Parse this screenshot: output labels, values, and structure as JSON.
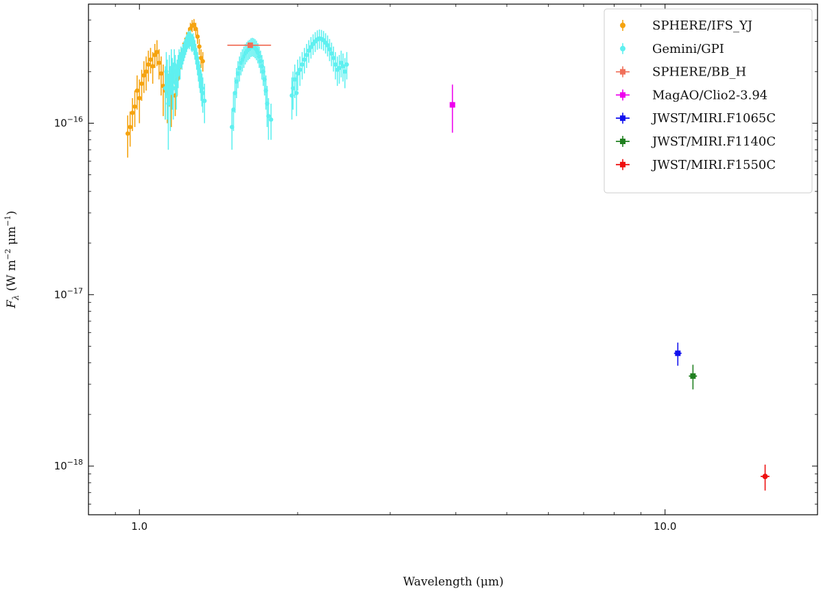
{
  "chart_data": {
    "type": "scatter",
    "xlabel": "Wavelength (μm)",
    "ylabel_main": "F",
    "ylabel_sub": "λ",
    "ylabel_units": " (W m",
    "ylabel_exp1": "−2",
    "ylabel_mid": " μm",
    "ylabel_exp2": "−1",
    "ylabel_close": ")",
    "x_scale": "log",
    "y_scale": "log",
    "xlim": [
      0.8,
      19.5
    ],
    "ylim": [
      5.2e-19,
      4.95e-16
    ],
    "x_ticks": [
      {
        "value": 1.0,
        "label": "1.0"
      },
      {
        "value": 10.0,
        "label": "10.0"
      }
    ],
    "y_ticks": [
      {
        "value": 1e-16,
        "base": "10",
        "exp": "−16"
      },
      {
        "value": 1e-17,
        "base": "10",
        "exp": "−17"
      },
      {
        "value": 1e-18,
        "base": "10",
        "exp": "−18"
      }
    ],
    "legend_position": "top-right",
    "grid": false,
    "series": [
      {
        "name": "SPHERE/IFS_YJ",
        "color": "#f5a30f",
        "marker": "circle",
        "points": [
          [
            0.95,
            8.7e-17,
            2.4e-17
          ],
          [
            0.96,
            9.5e-17,
            2.2e-17
          ],
          [
            0.97,
            1.15e-16,
            2.5e-17
          ],
          [
            0.98,
            1.25e-16,
            3e-17
          ],
          [
            0.99,
            1.55e-16,
            3.5e-17
          ],
          [
            1.0,
            1.4e-16,
            4e-17
          ],
          [
            1.01,
            1.7e-16,
            3.5e-17
          ],
          [
            1.02,
            1.9e-16,
            4e-17
          ],
          [
            1.03,
            2e-16,
            4.5e-17
          ],
          [
            1.04,
            2.2e-16,
            4.5e-17
          ],
          [
            1.05,
            2.35e-16,
            4e-17
          ],
          [
            1.06,
            2.15e-16,
            4.5e-17
          ],
          [
            1.07,
            2.5e-16,
            4e-17
          ],
          [
            1.08,
            2.6e-16,
            4.5e-17
          ],
          [
            1.09,
            2.25e-16,
            4.5e-17
          ],
          [
            1.1,
            1.95e-16,
            5e-17
          ],
          [
            1.11,
            1.65e-16,
            5.5e-17
          ],
          [
            1.12,
            1.55e-16,
            5e-17
          ],
          [
            1.13,
            1.5e-16,
            5e-17
          ],
          [
            1.14,
            1.7e-16,
            4.5e-17
          ],
          [
            1.15,
            1.4e-16,
            4.5e-17
          ],
          [
            1.16,
            1.6e-16,
            4e-17
          ],
          [
            1.17,
            1.45e-16,
            3.5e-17
          ],
          [
            1.18,
            1.8e-16,
            3.5e-17
          ],
          [
            1.19,
            2.1e-16,
            3e-17
          ],
          [
            1.2,
            2.4e-16,
            3e-17
          ],
          [
            1.21,
            2.65e-16,
            3e-17
          ],
          [
            1.22,
            2.85e-16,
            3e-17
          ],
          [
            1.23,
            3.1e-16,
            3e-17
          ],
          [
            1.24,
            3.3e-16,
            3e-17
          ],
          [
            1.25,
            3.55e-16,
            3e-17
          ],
          [
            1.26,
            3.7e-16,
            3e-17
          ],
          [
            1.27,
            3.75e-16,
            3e-17
          ],
          [
            1.28,
            3.55e-16,
            3e-17
          ],
          [
            1.29,
            3.2e-16,
            3e-17
          ],
          [
            1.3,
            2.8e-16,
            3e-17
          ],
          [
            1.31,
            2.4e-16,
            3e-17
          ],
          [
            1.32,
            2.3e-16,
            3e-17
          ]
        ]
      },
      {
        "name": "Gemini/GPI",
        "color": "#5ff0f0",
        "marker": "circle",
        "points": [
          [
            1.12,
            1.6e-16,
            5.5e-17
          ],
          [
            1.125,
            2e-16,
            6e-17
          ],
          [
            1.13,
            1.7e-16,
            6.5e-17
          ],
          [
            1.135,
            1.3e-16,
            6e-17
          ],
          [
            1.14,
            1.9e-16,
            6e-17
          ],
          [
            1.145,
            1.5e-16,
            6e-17
          ],
          [
            1.15,
            2.1e-16,
            6e-17
          ],
          [
            1.155,
            1.8e-16,
            6e-17
          ],
          [
            1.16,
            1.6e-16,
            5.5e-17
          ],
          [
            1.165,
            2.2e-16,
            5e-17
          ],
          [
            1.17,
            2e-16,
            5e-17
          ],
          [
            1.175,
            1.7e-16,
            5e-17
          ],
          [
            1.18,
            1.9e-16,
            4.5e-17
          ],
          [
            1.185,
            2.05e-16,
            4.5e-17
          ],
          [
            1.19,
            2.3e-16,
            4e-17
          ],
          [
            1.195,
            2.2e-16,
            4e-17
          ],
          [
            1.2,
            2.45e-16,
            3.5e-17
          ],
          [
            1.205,
            2.4e-16,
            3.5e-17
          ],
          [
            1.21,
            2.55e-16,
            3.5e-17
          ],
          [
            1.215,
            2.65e-16,
            3.5e-17
          ],
          [
            1.22,
            2.75e-16,
            3.5e-17
          ],
          [
            1.225,
            2.85e-16,
            3.5e-17
          ],
          [
            1.23,
            2.95e-16,
            3.5e-17
          ],
          [
            1.235,
            3.05e-16,
            3.5e-17
          ],
          [
            1.24,
            3.1e-16,
            3.5e-17
          ],
          [
            1.245,
            3.05e-16,
            3.5e-17
          ],
          [
            1.25,
            3.15e-16,
            3.5e-17
          ],
          [
            1.255,
            3e-16,
            3.5e-17
          ],
          [
            1.26,
            2.95e-16,
            3.5e-17
          ],
          [
            1.265,
            3e-16,
            3.5e-17
          ],
          [
            1.27,
            2.85e-16,
            3.5e-17
          ],
          [
            1.275,
            2.7e-16,
            3.5e-17
          ],
          [
            1.28,
            2.55e-16,
            3.5e-17
          ],
          [
            1.285,
            2.4e-16,
            3.5e-17
          ],
          [
            1.29,
            2.25e-16,
            3.5e-17
          ],
          [
            1.295,
            2.1e-16,
            3.5e-17
          ],
          [
            1.3,
            1.95e-16,
            3.5e-17
          ],
          [
            1.305,
            1.85e-16,
            3.5e-17
          ],
          [
            1.31,
            1.7e-16,
            3.5e-17
          ],
          [
            1.315,
            1.6e-16,
            3.5e-17
          ],
          [
            1.32,
            1.5e-16,
            3.5e-17
          ],
          [
            1.33,
            1.35e-16,
            3.5e-17
          ],
          [
            1.5,
            9.5e-17,
            2.5e-17
          ],
          [
            1.51,
            1.2e-16,
            3e-17
          ],
          [
            1.52,
            1.5e-16,
            3.5e-17
          ],
          [
            1.53,
            1.75e-16,
            3.5e-17
          ],
          [
            1.54,
            1.95e-16,
            3.5e-17
          ],
          [
            1.55,
            2.1e-16,
            3.5e-17
          ],
          [
            1.56,
            2.25e-16,
            3.5e-17
          ],
          [
            1.57,
            2.35e-16,
            3.5e-17
          ],
          [
            1.58,
            2.45e-16,
            3.5e-17
          ],
          [
            1.59,
            2.55e-16,
            3.5e-17
          ],
          [
            1.6,
            2.62e-16,
            3.5e-17
          ],
          [
            1.61,
            2.68e-16,
            3.5e-17
          ],
          [
            1.62,
            2.72e-16,
            3.5e-17
          ],
          [
            1.63,
            2.78e-16,
            3.5e-17
          ],
          [
            1.64,
            2.8e-16,
            3.5e-17
          ],
          [
            1.65,
            2.78e-16,
            3.5e-17
          ],
          [
            1.66,
            2.74e-16,
            3.5e-17
          ],
          [
            1.67,
            2.68e-16,
            3.5e-17
          ],
          [
            1.68,
            2.58e-16,
            3.5e-17
          ],
          [
            1.69,
            2.45e-16,
            3.5e-17
          ],
          [
            1.7,
            2.3e-16,
            3.5e-17
          ],
          [
            1.71,
            2.15e-16,
            3.5e-17
          ],
          [
            1.72,
            2e-16,
            3.5e-17
          ],
          [
            1.73,
            1.8e-16,
            3.5e-17
          ],
          [
            1.74,
            1.55e-16,
            3.5e-17
          ],
          [
            1.75,
            1.3e-16,
            3.5e-17
          ],
          [
            1.76,
            1.1e-16,
            3e-17
          ],
          [
            1.78,
            1.05e-16,
            2.5e-17
          ],
          [
            1.95,
            1.45e-16,
            4e-17
          ],
          [
            1.96,
            1.6e-16,
            4e-17
          ],
          [
            1.975,
            1.8e-16,
            4e-17
          ],
          [
            1.99,
            1.5e-16,
            4e-17
          ],
          [
            2.0,
            1.95e-16,
            4e-17
          ],
          [
            2.02,
            2.05e-16,
            4e-17
          ],
          [
            2.04,
            2.2e-16,
            4e-17
          ],
          [
            2.06,
            2.35e-16,
            4e-17
          ],
          [
            2.08,
            2.5e-16,
            4e-17
          ],
          [
            2.1,
            2.65e-16,
            4e-17
          ],
          [
            2.12,
            2.78e-16,
            4e-17
          ],
          [
            2.14,
            2.9e-16,
            4e-17
          ],
          [
            2.16,
            3e-16,
            4e-17
          ],
          [
            2.18,
            3.08e-16,
            4e-17
          ],
          [
            2.2,
            3.12e-16,
            4e-17
          ],
          [
            2.22,
            3.1e-16,
            4e-17
          ],
          [
            2.24,
            3.05e-16,
            4e-17
          ],
          [
            2.26,
            2.95e-16,
            4e-17
          ],
          [
            2.28,
            2.85e-16,
            4e-17
          ],
          [
            2.3,
            2.7e-16,
            4e-17
          ],
          [
            2.32,
            2.55e-16,
            4e-17
          ],
          [
            2.34,
            2.4e-16,
            4e-17
          ],
          [
            2.36,
            2.2e-16,
            4e-17
          ],
          [
            2.38,
            2.05e-16,
            4e-17
          ],
          [
            2.4,
            2.1e-16,
            4e-17
          ],
          [
            2.42,
            2.25e-16,
            4e-17
          ],
          [
            2.44,
            2.15e-16,
            4e-17
          ],
          [
            2.46,
            2e-16,
            4e-17
          ],
          [
            2.48,
            2.2e-16,
            4e-17
          ]
        ]
      },
      {
        "name": "SPHERE/BB_H",
        "color": "#f0705a",
        "marker": "square",
        "points": [
          [
            1.625,
            2.85e-16,
            0,
            1.47,
            1.78
          ]
        ]
      },
      {
        "name": "MagAO/Clio2-3.94",
        "color": "#ee00ee",
        "marker": "square",
        "points": [
          [
            3.94,
            1.28e-16,
            4e-17
          ]
        ]
      },
      {
        "name": "JWST/MIRI.F1065C",
        "color": "#1010ee",
        "marker": "square",
        "points": [
          [
            10.575,
            4.55e-18,
            7e-19,
            10.4,
            10.75
          ]
        ]
      },
      {
        "name": "JWST/MIRI.F1140C",
        "color": "#208020",
        "marker": "square",
        "points": [
          [
            11.3,
            3.35e-18,
            5.5e-19,
            11.1,
            11.5
          ]
        ]
      },
      {
        "name": "JWST/MIRI.F1550C",
        "color": "#ee1010",
        "marker": "circle",
        "points": [
          [
            15.5,
            8.7e-19,
            1.5e-19,
            15.2,
            15.8
          ]
        ]
      }
    ]
  }
}
